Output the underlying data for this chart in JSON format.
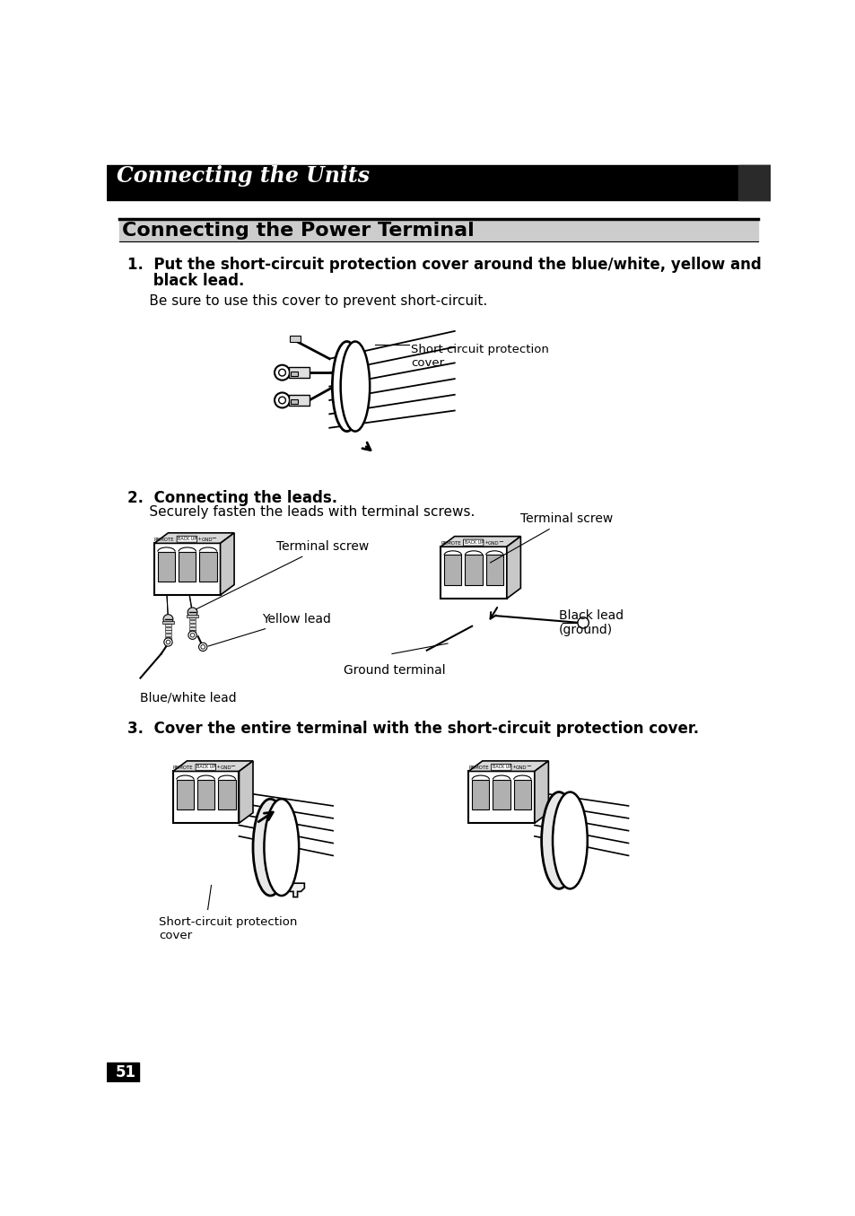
{
  "page_title": "Connecting the Units",
  "section_title": "Connecting the Power Terminal",
  "step1_line1": "1.  Put the short-circuit protection cover around the blue/white, yellow and",
  "step1_line2": "     black lead.",
  "step1_note": "     Be sure to use this cover to prevent short-circuit.",
  "step1_label": "Short circuit protection\ncover",
  "step2_title": "2.  Connecting the leads.",
  "step2_note": "     Securely fasten the leads with terminal screws.",
  "step2_label_left1": "Terminal screw",
  "step2_label_left2": "Yellow lead",
  "step2_label_left3": "Blue/white lead",
  "step2_label_right1": "Terminal screw",
  "step2_label_right2": "Ground terminal",
  "step2_label_right3": "Black lead\n(ground)",
  "step3_title": "3.  Cover the entire terminal with the short-circuit protection cover.",
  "step3_label": "Short-circuit protection\ncover",
  "page_number": "51",
  "bg_color": "#ffffff",
  "header_bg": "#000000",
  "header_text_color": "#ffffff",
  "section_bg": "#cccccc",
  "section_line_color": "#000000",
  "page_num_bg": "#000000",
  "page_num_color": "#ffffff",
  "text_color": "#000000"
}
